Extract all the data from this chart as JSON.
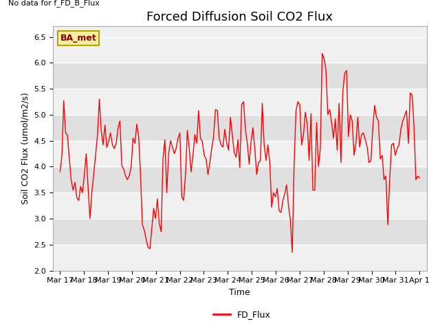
{
  "title": "Forced Diffusion Soil CO2 Flux",
  "xlabel": "Time",
  "ylabel": "Soil CO2 Flux (umol/m2/s)",
  "no_data_text": "No data for f_FD_B_Flux",
  "ba_met_label": "BA_met",
  "legend_label": "FD_Flux",
  "ylim": [
    2.0,
    6.7
  ],
  "yticks": [
    2.0,
    2.5,
    3.0,
    3.5,
    4.0,
    4.5,
    5.0,
    5.5,
    6.0,
    6.5
  ],
  "line_color": "red",
  "background_color": "#ffffff",
  "plot_bg_color": "#f0f0f0",
  "band_color": "#e0e0e0",
  "title_fontsize": 13,
  "label_fontsize": 9,
  "tick_fontsize": 8,
  "xtick_labels": [
    "Mar 17",
    "Mar 18",
    "Mar 19",
    "Mar 20",
    "Mar 21",
    "Mar 22",
    "Mar 23",
    "Mar 24",
    "Mar 25",
    "Mar 26",
    "Mar 27",
    "Mar 28",
    "Mar 29",
    "Mar 30",
    "Mar 31",
    "Apr 1"
  ],
  "y_values": [
    3.9,
    4.2,
    5.27,
    4.65,
    4.6,
    4.15,
    3.73,
    3.55,
    3.7,
    3.4,
    3.35,
    3.62,
    3.5,
    3.85,
    4.25,
    3.6,
    3.0,
    3.5,
    3.85,
    4.22,
    4.6,
    5.3,
    4.7,
    4.42,
    4.8,
    4.37,
    4.5,
    4.65,
    4.42,
    4.35,
    4.45,
    4.75,
    4.88,
    4.02,
    3.95,
    3.82,
    3.75,
    3.83,
    4.0,
    4.55,
    4.45,
    4.82,
    4.58,
    3.85,
    2.88,
    2.78,
    2.6,
    2.45,
    2.42,
    2.8,
    3.2,
    3.0,
    3.38,
    2.9,
    2.75,
    4.15,
    4.52,
    3.5,
    4.25,
    4.5,
    4.38,
    4.25,
    4.35,
    4.55,
    4.65,
    3.42,
    3.35,
    3.85,
    4.7,
    4.35,
    3.9,
    4.22,
    4.62,
    4.45,
    5.08,
    4.55,
    4.48,
    4.22,
    4.15,
    3.85,
    4.08,
    4.35,
    4.58,
    5.1,
    5.08,
    4.55,
    4.42,
    4.38,
    4.72,
    4.45,
    4.32,
    4.95,
    4.62,
    4.28,
    4.18,
    4.52,
    3.98,
    5.2,
    5.25,
    4.72,
    4.45,
    4.05,
    4.48,
    4.75,
    4.35,
    3.85,
    4.08,
    4.12,
    5.22,
    4.42,
    4.12,
    4.42,
    4.08,
    3.22,
    3.5,
    3.42,
    3.58,
    3.15,
    3.12,
    3.35,
    3.48,
    3.65,
    3.25,
    2.98,
    2.35,
    4.05,
    5.08,
    5.25,
    5.2,
    4.42,
    4.62,
    5.05,
    4.82,
    4.12,
    5.02,
    3.55,
    3.55,
    4.85,
    4.0,
    4.35,
    6.18,
    6.08,
    5.85,
    5.0,
    5.1,
    4.85,
    4.55,
    4.92,
    4.32,
    5.22,
    4.08,
    5.45,
    5.8,
    5.85,
    4.58,
    5.0,
    4.88,
    4.22,
    4.45,
    4.95,
    4.38,
    4.62,
    4.65,
    4.52,
    4.38,
    4.08,
    4.12,
    4.75,
    5.18,
    4.95,
    4.88,
    4.15,
    4.22,
    3.75,
    3.82,
    2.88,
    3.72,
    4.42,
    4.45,
    4.22,
    4.35,
    4.42,
    4.72,
    4.88,
    4.98,
    5.08,
    4.45,
    5.42,
    5.38,
    4.78,
    3.75,
    3.82,
    3.78
  ]
}
